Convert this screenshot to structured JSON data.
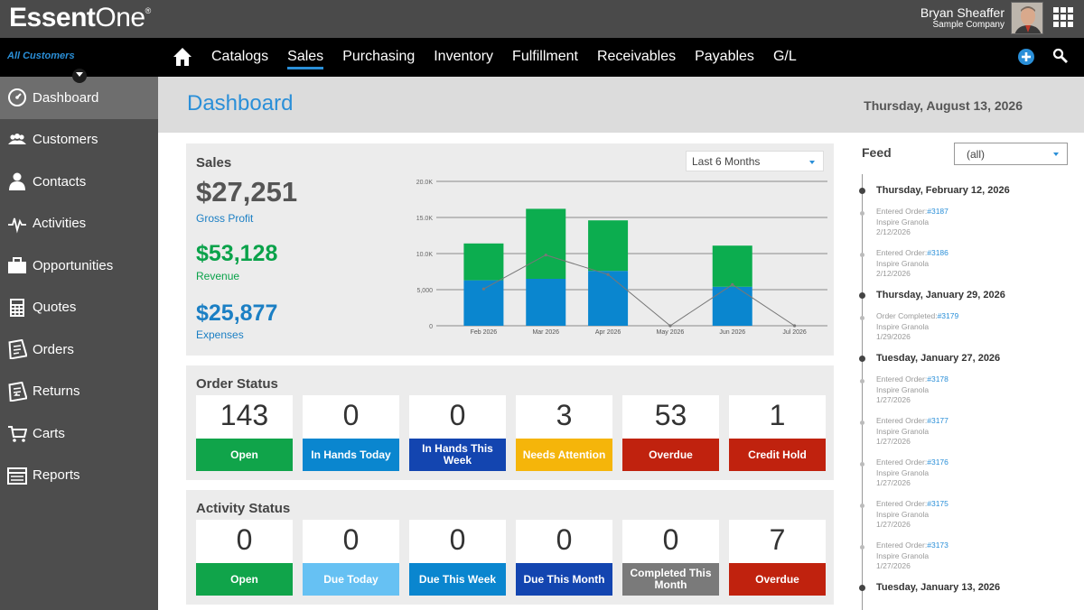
{
  "app": {
    "logo_bold": "Essent",
    "logo_thin": "One",
    "logo_mark": "®"
  },
  "user": {
    "name": "Bryan Sheaffer",
    "company": "Sample Company"
  },
  "nav": {
    "scope": "All Customers",
    "items": [
      "Catalogs",
      "Sales",
      "Purchasing",
      "Inventory",
      "Fulfillment",
      "Receivables",
      "Payables",
      "G/L"
    ],
    "active": "Sales"
  },
  "sidebar": {
    "items": [
      {
        "label": "Dashboard",
        "icon": "dashboard-icon"
      },
      {
        "label": "Customers",
        "icon": "customers-icon"
      },
      {
        "label": "Contacts",
        "icon": "contacts-icon"
      },
      {
        "label": "Activities",
        "icon": "activities-icon"
      },
      {
        "label": "Opportunities",
        "icon": "opportunities-icon"
      },
      {
        "label": "Quotes",
        "icon": "quotes-icon"
      },
      {
        "label": "Orders",
        "icon": "orders-icon"
      },
      {
        "label": "Returns",
        "icon": "returns-icon"
      },
      {
        "label": "Carts",
        "icon": "carts-icon"
      },
      {
        "label": "Reports",
        "icon": "reports-icon"
      }
    ],
    "active": "Dashboard"
  },
  "page": {
    "title": "Dashboard",
    "date": "Thursday, August 13, 2026"
  },
  "sales": {
    "title": "Sales",
    "range": "Last 6 Months",
    "gross_profit": {
      "value": "$27,251",
      "label": "Gross Profit"
    },
    "revenue": {
      "value": "$53,128",
      "label": "Revenue"
    },
    "expenses": {
      "value": "$25,877",
      "label": "Expenses"
    }
  },
  "chart_data": {
    "type": "bar",
    "categories": [
      "Feb 2026",
      "Mar 2026",
      "Apr 2026",
      "May 2026",
      "Jun 2026",
      "Jul 2026"
    ],
    "series": [
      {
        "values": [
          6300,
          6500,
          7600,
          0,
          5400,
          0
        ],
        "color": "#0a86cf"
      },
      {
        "values": [
          5100,
          9700,
          7000,
          0,
          5700,
          0
        ],
        "color": "#0cad4f"
      },
      {
        "values": [
          5100,
          9800,
          7100,
          0,
          5700,
          0
        ],
        "color": "#777777",
        "kind": "line"
      }
    ],
    "stacked": true,
    "ylim": [
      0,
      20000
    ],
    "yticks": [
      "0",
      "5,000",
      "10.0K",
      "15.0K",
      "20.0K"
    ],
    "grid": true
  },
  "order_status": {
    "title": "Order Status",
    "tiles": [
      {
        "value": "143",
        "label": "Open",
        "color": "#10a44a"
      },
      {
        "value": "0",
        "label": "In Hands Today",
        "color": "#0a86cf"
      },
      {
        "value": "0",
        "label": "In Hands This Week",
        "color": "#1345b0"
      },
      {
        "value": "3",
        "label": "Needs Attention",
        "color": "#f5b50a"
      },
      {
        "value": "53",
        "label": "Overdue",
        "color": "#c0220e"
      },
      {
        "value": "1",
        "label": "Credit Hold",
        "color": "#c0220e"
      }
    ]
  },
  "activity_status": {
    "title": "Activity Status",
    "tiles": [
      {
        "value": "0",
        "label": "Open",
        "color": "#10a44a"
      },
      {
        "value": "0",
        "label": "Due Today",
        "color": "#66c1f3"
      },
      {
        "value": "0",
        "label": "Due This Week",
        "color": "#0a86cf"
      },
      {
        "value": "0",
        "label": "Due This Month",
        "color": "#1345b0"
      },
      {
        "value": "0",
        "label": "Completed This Month",
        "color": "#7a7a7a"
      },
      {
        "value": "7",
        "label": "Overdue",
        "color": "#c0220e"
      }
    ]
  },
  "feed": {
    "label": "Feed",
    "filter": "(all)",
    "entries": [
      {
        "type": "day",
        "text": "Thursday, February 12, 2026"
      },
      {
        "type": "item",
        "action": "Entered Order:",
        "order": "#3187",
        "customer": "Inspire Granola",
        "date": "2/12/2026"
      },
      {
        "type": "item",
        "action": "Entered Order:",
        "order": "#3186",
        "customer": "Inspire Granola",
        "date": "2/12/2026"
      },
      {
        "type": "day",
        "text": "Thursday, January 29, 2026"
      },
      {
        "type": "item",
        "action": "Order Completed:",
        "order": "#3179",
        "customer": "Inspire Granola",
        "date": "1/29/2026"
      },
      {
        "type": "day",
        "text": "Tuesday, January 27, 2026"
      },
      {
        "type": "item",
        "action": "Entered Order:",
        "order": "#3178",
        "customer": "Inspire Granola",
        "date": "1/27/2026"
      },
      {
        "type": "item",
        "action": "Entered Order:",
        "order": "#3177",
        "customer": "Inspire Granola",
        "date": "1/27/2026"
      },
      {
        "type": "item",
        "action": "Entered Order:",
        "order": "#3176",
        "customer": "Inspire Granola",
        "date": "1/27/2026"
      },
      {
        "type": "item",
        "action": "Entered Order:",
        "order": "#3175",
        "customer": "Inspire Granola",
        "date": "1/27/2026"
      },
      {
        "type": "item",
        "action": "Entered Order:",
        "order": "#3173",
        "customer": "Inspire Granola",
        "date": "1/27/2026"
      },
      {
        "type": "day",
        "text": "Tuesday, January 13, 2026"
      }
    ]
  },
  "colors": {
    "accent": "#2a8fd8",
    "profit": "#1b7fc4",
    "revenue": "#0aa24a",
    "expenses": "#1b7fc4"
  }
}
